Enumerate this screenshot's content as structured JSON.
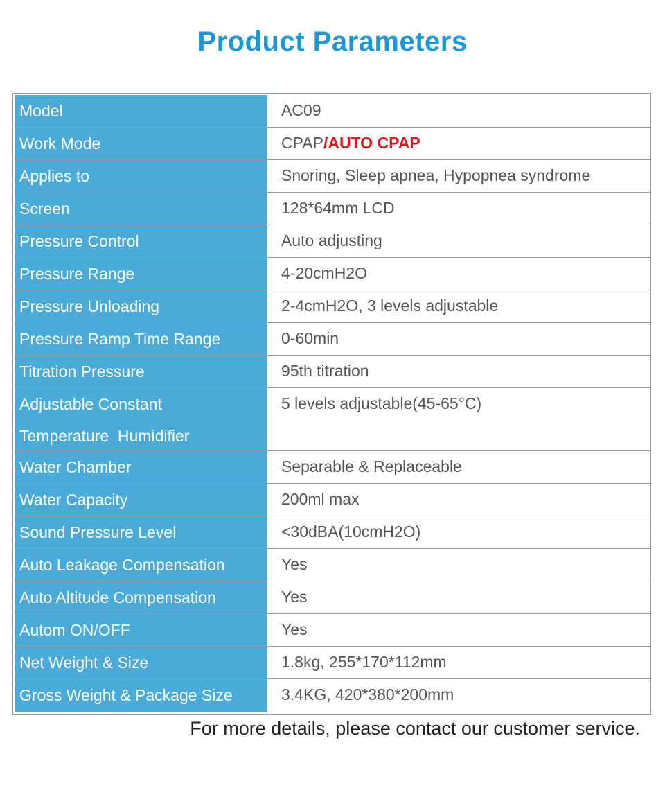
{
  "title": "Product Parameters",
  "colors": {
    "title": "#1a98d8",
    "label_bg": "#4aabd9",
    "highlight": "#e8141b"
  },
  "rows": [
    {
      "label": "Model",
      "value": "AC09"
    },
    {
      "label": "Work Mode",
      "value": "CPAP",
      "value_highlight": "/AUTO CPAP"
    },
    {
      "label": "Applies to",
      "value": "Snoring, Sleep apnea, Hypopnea syndrome"
    },
    {
      "label": "Screen",
      "value": "128*64mm LCD"
    },
    {
      "label": "Pressure Control",
      "value": "Auto adjusting"
    },
    {
      "label": "Pressure Range",
      "value": "4-20cmH2O"
    },
    {
      "label": "Pressure Unloading",
      "value": "2-4cmH2O, 3 levels adjustable"
    },
    {
      "label": "Pressure Ramp Time Range",
      "value": "0-60min"
    },
    {
      "label": "Titration Pressure",
      "value": "95th titration"
    },
    {
      "label": "Adjustable Constant Temperature  Humidifier",
      "value": "5 levels adjustable(45-65°C)"
    },
    {
      "label": "Water Chamber",
      "value": "Separable & Replaceable"
    },
    {
      "label": "Water Capacity",
      "value": "200ml max"
    },
    {
      "label": "Sound Pressure  Level",
      "value": "<30dBA(10cmH2O)"
    },
    {
      "label": "Auto Leakage   Compensation",
      "value": "Yes"
    },
    {
      "label": "Auto Altitude   Compensation",
      "value": "Yes"
    },
    {
      "label": "Autom ON/OFF",
      "value": "Yes"
    },
    {
      "label": "Net Weight & Size",
      "value": "1.8kg, 255*170*112mm"
    },
    {
      "label": "Gross Weight & Package Size",
      "value": "3.4KG, 420*380*200mm"
    }
  ],
  "footer": "For more details, please contact our customer service."
}
